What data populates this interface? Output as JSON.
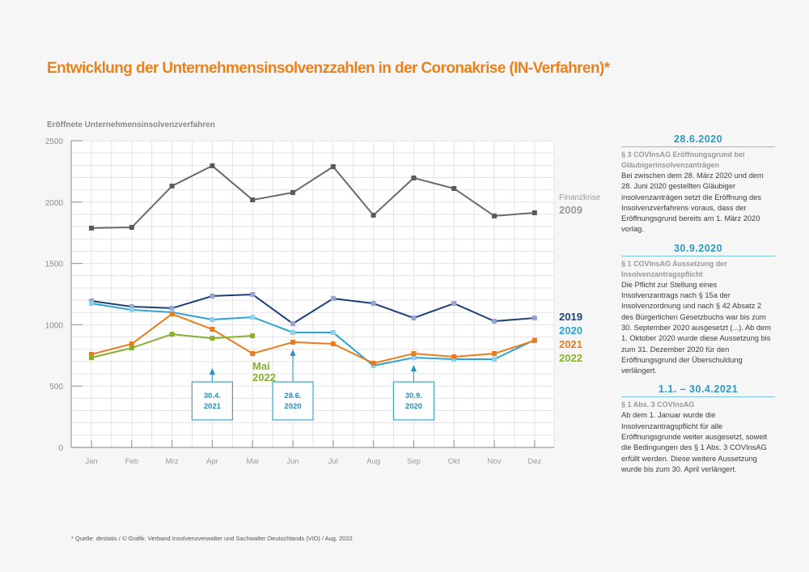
{
  "title": "Entwicklung der Unternehmensinsolvenzzahlen in der Coronakrise (IN-Verfahren)*",
  "footer": "* Quelle: destatis / © Grafik: Verband Insolvenzverwalter und Sachwalter Deutschlands (VID) / Aug. 2022",
  "chart_data": {
    "type": "line",
    "title": "Entwicklung der Unternehmensinsolvenzzahlen in der Coronakrise (IN-Verfahren)*",
    "xlabel": "",
    "ylabel": "Eröffnete Unternehmensinsolvenzverfahren",
    "categories": [
      "Jan",
      "Feb",
      "Mrz",
      "Apr",
      "Mai",
      "Jun",
      "Jul",
      "Aug",
      "Sep",
      "Okt",
      "Nov",
      "Dez"
    ],
    "ylim": [
      0,
      2500
    ],
    "yticks": [
      0,
      500,
      1000,
      1500,
      2000,
      2500
    ],
    "grid": true,
    "legend_placement": "right",
    "series": [
      {
        "name": "2009",
        "label_top": "Finanzkrise",
        "color": "#6b6b6b",
        "label_color": "#9a9a9a",
        "marker_color": "#5a5a5a",
        "values": [
          1788,
          1794,
          2131,
          2296,
          2018,
          2078,
          2289,
          1893,
          2197,
          2111,
          1887,
          1913
        ]
      },
      {
        "name": "2019",
        "color": "#1c3f78",
        "label_color": "#1c3f78",
        "marker_color": "#9aa3cf",
        "values": [
          1194,
          1148,
          1135,
          1234,
          1247,
          1009,
          1214,
          1174,
          1055,
          1174,
          1029,
          1055
        ]
      },
      {
        "name": "2020",
        "color": "#2ea3d2",
        "label_color": "#2ea3d2",
        "marker_color": "#8fd0ee",
        "values": [
          1174,
          1121,
          1102,
          1042,
          1062,
          937,
          937,
          666,
          732,
          719,
          719,
          877
        ]
      },
      {
        "name": "2021",
        "color": "#e77d1c",
        "label_color": "#e77d1c",
        "marker_color": "#e77d1c",
        "values": [
          759,
          844,
          1088,
          963,
          765,
          858,
          844,
          686,
          765,
          739,
          765,
          871
        ]
      },
      {
        "name": "2022",
        "color": "#86b02e",
        "label_color": "#86b02e",
        "marker_color": "#86b02e",
        "values": [
          732,
          811,
          923,
          890,
          910
        ]
      }
    ],
    "annotations": [
      {
        "text": "Mai\n2022",
        "color": "#86b02e",
        "near": "Mai"
      },
      {
        "text": "30.4.\n2021",
        "month": "Apr",
        "arrow_to": 563,
        "box": true
      },
      {
        "text": "28.6.\n2020",
        "month": "Jun",
        "arrow_to": 858,
        "box": true
      },
      {
        "text": "30.9.\n2020",
        "month": "Sep",
        "arrow_to": 732,
        "box": true
      }
    ]
  },
  "sidebar": {
    "notes": [
      {
        "date": "28.6.2020",
        "subtitle": "§ 3 COVInsAG Eröffnungsgrund bei Gläubigerinsolvenzanträgen",
        "body": "Bei zwischen dem 28. März 2020 und dem 28. Juni 2020 gestellten Gläubiger insolvenzanträgen setzt die Eröffnung des Insolvenzverfahrens voraus, dass der Eröffnungsgrund bereits am 1. März 2020 vorlag."
      },
      {
        "date": "30.9.2020",
        "subtitle": "§ 1 COVInsAG Aussetzung der Insolvenzantragspflicht",
        "body": "Die Pflicht zur Stellung eines Insolvenzantrags nach § 15a der Insolvenzordnung und nach § 42 Absatz 2 des Bürgerlichen Gesetzbuchs war bis zum 30. September 2020 ausgesetzt (...). Ab dem 1. Oktober 2020 wurde diese Aussetzung bis zum 31. Dezember 2020 für den Eröffnungsgrund der Überschuldung verlängert."
      },
      {
        "date": "1.1. – 30.4.2021",
        "subtitle": "§ 1 Abs. 3 COVInsAG",
        "body": "Ab dem 1. Januar wurde die Insolvenzantragspflicht für alle Eröffnungsgrunde weiter ausgesetzt, soweit die Bedingungen des § 1 Abs. 3 COVInsAG erfüllt werden. Diese weitere Aussetzung wurde bis zum 30. April verlängert."
      }
    ]
  }
}
